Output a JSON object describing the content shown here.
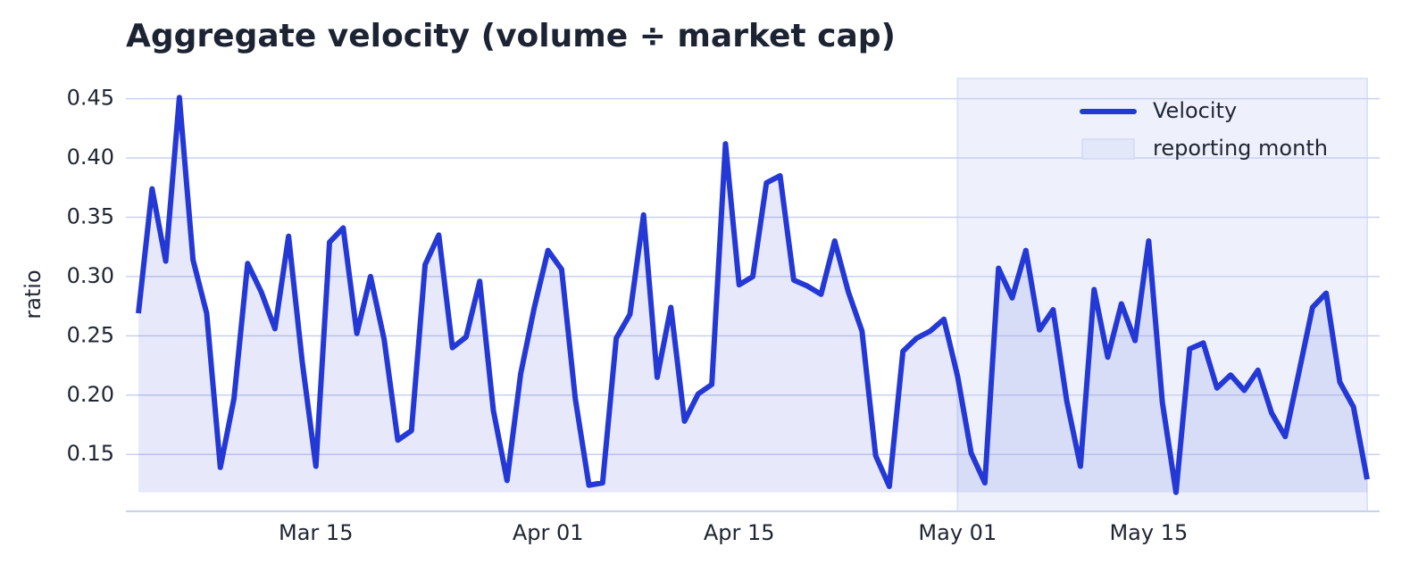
{
  "chart_data": {
    "type": "line",
    "title": "Aggregate velocity (volume ÷ market cap)",
    "ylabel": "ratio",
    "x": [
      "Mar 02",
      "Mar 03",
      "Mar 04",
      "Mar 05",
      "Mar 06",
      "Mar 07",
      "Mar 08",
      "Mar 09",
      "Mar 10",
      "Mar 11",
      "Mar 12",
      "Mar 13",
      "Mar 14",
      "Mar 15",
      "Mar 16",
      "Mar 17",
      "Mar 18",
      "Mar 19",
      "Mar 20",
      "Mar 21",
      "Mar 22",
      "Mar 23",
      "Mar 24",
      "Mar 25",
      "Mar 26",
      "Mar 27",
      "Mar 28",
      "Mar 29",
      "Mar 30",
      "Mar 31",
      "Apr 01",
      "Apr 02",
      "Apr 03",
      "Apr 04",
      "Apr 05",
      "Apr 06",
      "Apr 07",
      "Apr 08",
      "Apr 09",
      "Apr 10",
      "Apr 11",
      "Apr 12",
      "Apr 13",
      "Apr 14",
      "Apr 15",
      "Apr 16",
      "Apr 17",
      "Apr 18",
      "Apr 19",
      "Apr 20",
      "Apr 21",
      "Apr 22",
      "Apr 23",
      "Apr 24",
      "Apr 25",
      "Apr 26",
      "Apr 27",
      "Apr 28",
      "Apr 29",
      "Apr 30",
      "May 01",
      "May 02",
      "May 03",
      "May 04",
      "May 05",
      "May 06",
      "May 07",
      "May 08",
      "May 09",
      "May 10",
      "May 11",
      "May 12",
      "May 13",
      "May 14",
      "May 15",
      "May 16",
      "May 17",
      "May 18",
      "May 19",
      "May 20",
      "May 21",
      "May 22",
      "May 23",
      "May 24",
      "May 25",
      "May 26",
      "May 27",
      "May 28",
      "May 29",
      "May 30",
      "May 31"
    ],
    "series": [
      {
        "name": "Velocity",
        "color": "#2438d6",
        "values": [
          0.269,
          0.374,
          0.313,
          0.451,
          0.314,
          0.269,
          0.139,
          0.197,
          0.311,
          0.287,
          0.256,
          0.334,
          0.228,
          0.14,
          0.329,
          0.341,
          0.252,
          0.3,
          0.247,
          0.162,
          0.17,
          0.31,
          0.335,
          0.24,
          0.249,
          0.296,
          0.187,
          0.128,
          0.218,
          0.274,
          0.322,
          0.306,
          0.197,
          0.124,
          0.126,
          0.248,
          0.268,
          0.352,
          0.215,
          0.274,
          0.178,
          0.201,
          0.209,
          0.412,
          0.293,
          0.3,
          0.379,
          0.385,
          0.297,
          0.292,
          0.285,
          0.33,
          0.287,
          0.254,
          0.149,
          0.123,
          0.237,
          0.248,
          0.254,
          0.264,
          0.216,
          0.151,
          0.126,
          0.307,
          0.282,
          0.322,
          0.255,
          0.272,
          0.195,
          0.14,
          0.289,
          0.232,
          0.277,
          0.246,
          0.33,
          0.194,
          0.118,
          0.239,
          0.244,
          0.206,
          0.217,
          0.204,
          0.221,
          0.185,
          0.165,
          0.219,
          0.274,
          0.286,
          0.211,
          0.19,
          0.129
        ]
      }
    ],
    "highlight": {
      "name": "reporting month",
      "start": "May 01",
      "end": "May 31"
    },
    "xticks": [
      "Mar 15",
      "Apr 01",
      "Apr 15",
      "May 01",
      "May 15"
    ],
    "ylim": [
      0.102,
      0.467
    ],
    "yticks": [
      0.15,
      {
        "value": 0.2,
        "label": "0.20"
      },
      0.25,
      {
        "value": 0.3,
        "label": "0.30"
      },
      0.35,
      {
        "value": 0.4,
        "label": "0.40"
      },
      0.45
    ],
    "grid": true,
    "legend": "upper right"
  }
}
